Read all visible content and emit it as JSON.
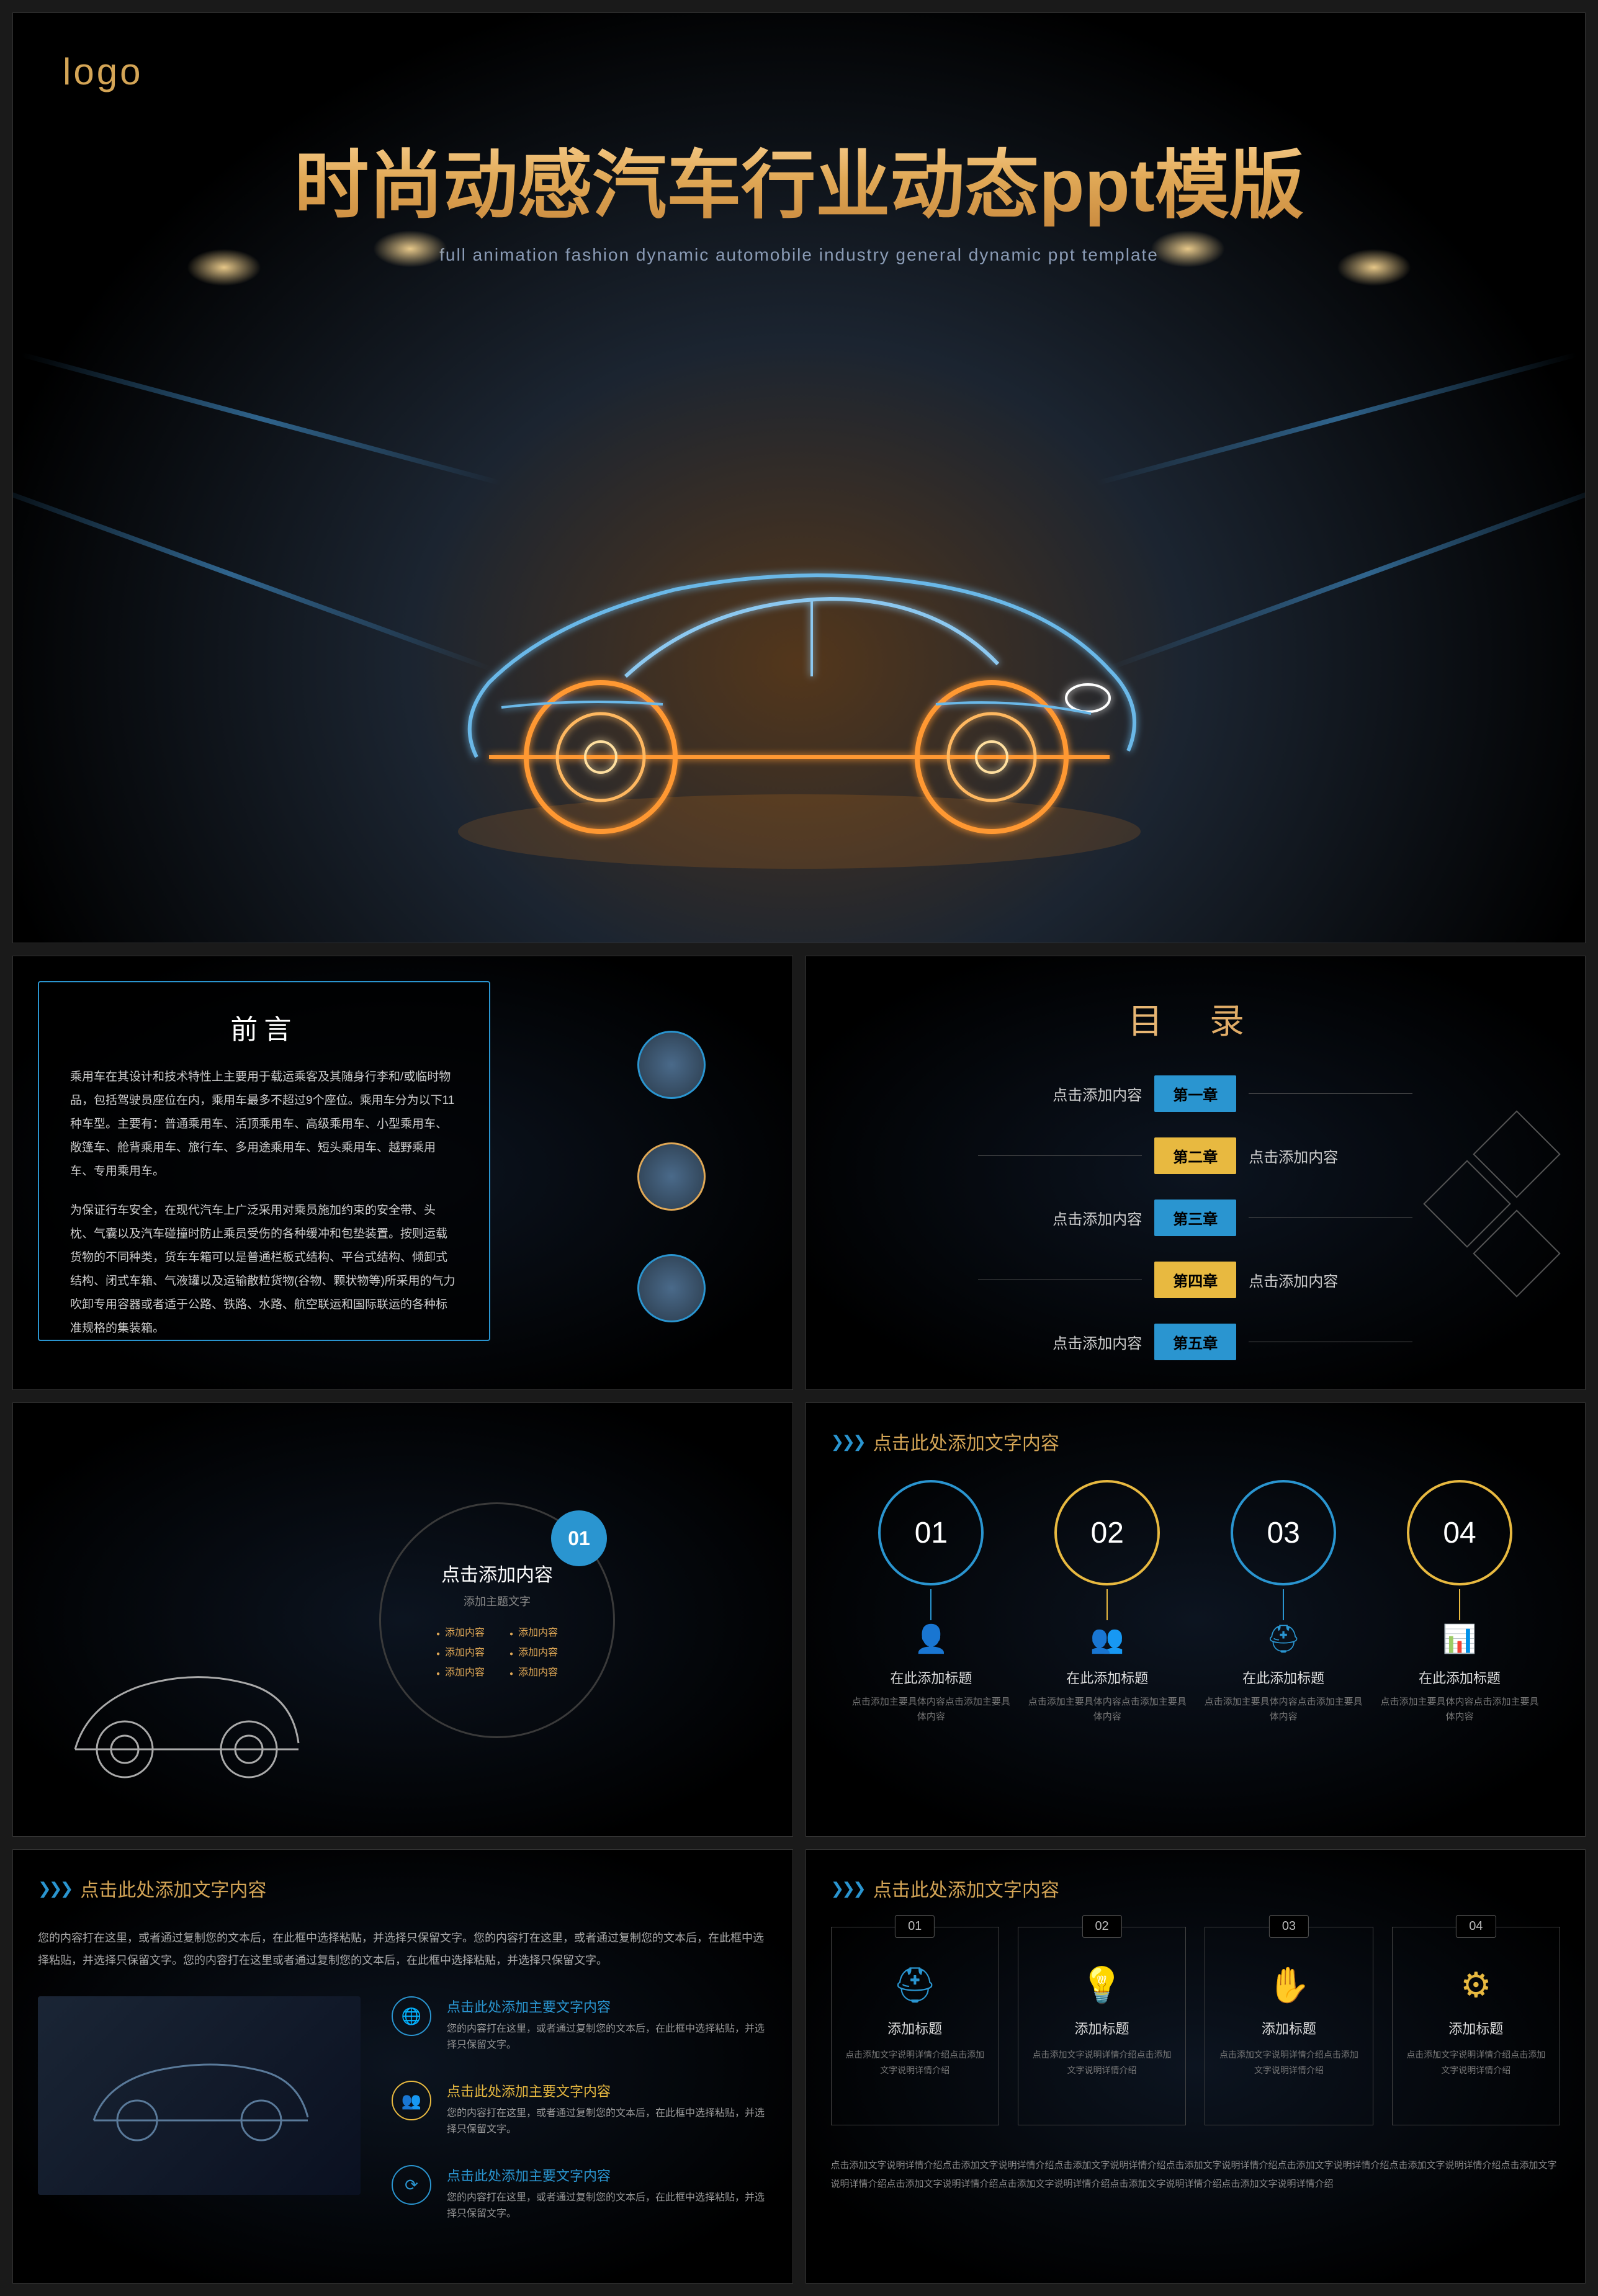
{
  "hero": {
    "logo": "logo",
    "title": "时尚动感汽车行业动态ppt模版",
    "subtitle": "full animation fashion dynamic automobile industry general dynamic ppt template"
  },
  "preface": {
    "heading": "前言",
    "p1": "乘用车在其设计和技术特性上主要用于载运乘客及其随身行李和/或临时物品，包括驾驶员座位在内，乘用车最多不超过9个座位。乘用车分为以下11种车型。主要有：普通乘用车、活顶乘用车、高级乘用车、小型乘用车、敞篷车、舱背乘用车、旅行车、多用途乘用车、短头乘用车、越野乘用车、专用乘用车。",
    "p2": "为保证行车安全，在现代汽车上广泛采用对乘员施加约束的安全带、头枕、气囊以及汽车碰撞时防止乘员受伤的各种缓冲和包垫装置。按则运载货物的不同种类，货车车箱可以是普通栏板式结构、平台式结构、倾卸式结构、闭式车箱、气液罐以及运输散粒货物(谷物、颗状物等)所采用的气力吹卸专用容器或者适于公路、铁路、水路、航空联运和国际联运的各种标准规格的集装箱。"
  },
  "toc": {
    "heading": "目 录",
    "items": [
      {
        "chapter": "第一章",
        "text": "点击添加内容",
        "color": "#2a95d0"
      },
      {
        "chapter": "第二章",
        "text": "点击添加内容",
        "color": "#e8b940"
      },
      {
        "chapter": "第三章",
        "text": "点击添加内容",
        "color": "#2a95d0"
      },
      {
        "chapter": "第四章",
        "text": "点击添加内容",
        "color": "#e8b940"
      },
      {
        "chapter": "第五章",
        "text": "点击添加内容",
        "color": "#2a95d0"
      }
    ]
  },
  "section1": {
    "badge": "01",
    "title": "点击添加内容",
    "sub": "添加主题文字",
    "bullets": [
      "添加内容",
      "添加内容",
      "添加内容",
      "添加内容",
      "添加内容",
      "添加内容"
    ]
  },
  "slide5": {
    "header": "点击此处添加文字内容",
    "nums": [
      {
        "label": "01",
        "color": "#2a95d0"
      },
      {
        "label": "02",
        "color": "#e8b940"
      },
      {
        "label": "03",
        "color": "#2a95d0"
      },
      {
        "label": "04",
        "color": "#e8b940"
      }
    ],
    "icons": [
      {
        "glyph": "👤",
        "color": "#2a95d0",
        "title": "在此添加标题",
        "desc": "点击添加主要具体内容点击添加主要具体内容"
      },
      {
        "glyph": "👥",
        "color": "#e8b940",
        "title": "在此添加标题",
        "desc": "点击添加主要具体内容点击添加主要具体内容"
      },
      {
        "glyph": "⛑",
        "color": "#2a95d0",
        "title": "在此添加标题",
        "desc": "点击添加主要具体内容点击添加主要具体内容"
      },
      {
        "glyph": "📊",
        "color": "#e8b940",
        "title": "在此添加标题",
        "desc": "点击添加主要具体内容点击添加主要具体内容"
      }
    ]
  },
  "slide6": {
    "header": "点击此处添加文字内容",
    "para": "您的内容打在这里，或者通过复制您的文本后，在此框中选择粘贴，并选择只保留文字。您的内容打在这里，或者通过复制您的文本后，在此框中选择粘贴，并选择只保留文字。您的内容打在这里或者通过复制您的文本后，在此框中选择粘贴，并选择只保留文字。",
    "items": [
      {
        "icon": "🌐",
        "color": "#2a95d0",
        "title": "点击此处添加主要文字内容",
        "desc": "您的内容打在这里，或者通过复制您的文本后，在此框中选择粘贴，并选择只保留文字。"
      },
      {
        "icon": "👥",
        "color": "#e8b940",
        "title": "点击此处添加主要文字内容",
        "desc": "您的内容打在这里，或者通过复制您的文本后，在此框中选择粘贴，并选择只保留文字。"
      },
      {
        "icon": "⟳",
        "color": "#2a95d0",
        "title": "点击此处添加主要文字内容",
        "desc": "您的内容打在这里，或者通过复制您的文本后，在此框中选择粘贴，并选择只保留文字。"
      }
    ]
  },
  "slide7": {
    "header": "点击此处添加文字内容",
    "cards": [
      {
        "num": "01",
        "icon": "⛑",
        "color": "#2a95d0",
        "title": "添加标题",
        "desc": "点击添加文字说明详情介绍点击添加文字说明详情介绍"
      },
      {
        "num": "02",
        "icon": "💡",
        "color": "#e8b940",
        "title": "添加标题",
        "desc": "点击添加文字说明详情介绍点击添加文字说明详情介绍"
      },
      {
        "num": "03",
        "icon": "✋",
        "color": "#2a95d0",
        "title": "添加标题",
        "desc": "点击添加文字说明详情介绍点击添加文字说明详情介绍"
      },
      {
        "num": "04",
        "icon": "⚙",
        "color": "#e8b940",
        "title": "添加标题",
        "desc": "点击添加文字说明详情介绍点击添加文字说明详情介绍"
      }
    ],
    "footer": "点击添加文字说明详情介绍点击添加文字说明详情介绍点击添加文字说明详情介绍点击添加文字说明详情介绍点击添加文字说明详情介绍点击添加文字说明详情介绍点击添加文字说明详情介绍点击添加文字说明详情介绍点击添加文字说明详情介绍点击添加文字说明详情介绍点击添加文字说明详情介绍"
  }
}
